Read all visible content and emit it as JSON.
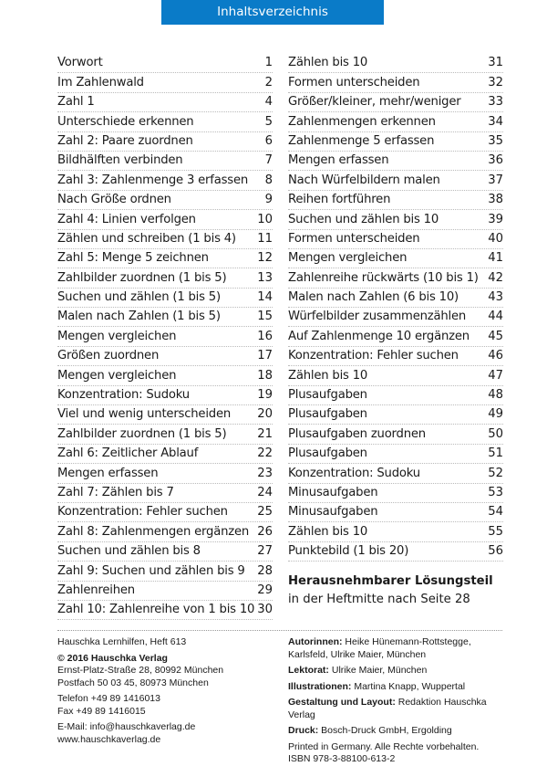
{
  "header": {
    "title": "Inhaltsverzeichnis",
    "color": "#0a7bc8"
  },
  "toc_left": [
    {
      "title": "Vorwort",
      "page": "1"
    },
    {
      "title": "Im Zahlenwald",
      "page": "2"
    },
    {
      "title": "Zahl 1",
      "page": "4"
    },
    {
      "title": "Unterschiede erkennen",
      "page": "5"
    },
    {
      "title": "Zahl 2: Paare zuordnen",
      "page": "6"
    },
    {
      "title": "Bildhälften verbinden",
      "page": "7"
    },
    {
      "title": "Zahl 3: Zahlenmenge 3 erfassen",
      "page": "8"
    },
    {
      "title": "Nach Größe ordnen",
      "page": "9"
    },
    {
      "title": "Zahl 4: Linien verfolgen",
      "page": "10"
    },
    {
      "title": "Zählen und schreiben (1 bis 4)",
      "page": "11"
    },
    {
      "title": "Zahl 5: Menge 5 zeichnen",
      "page": "12"
    },
    {
      "title": "Zahlbilder zuordnen (1 bis 5)",
      "page": "13"
    },
    {
      "title": "Suchen und zählen (1 bis 5)",
      "page": "14"
    },
    {
      "title": "Malen nach Zahlen (1 bis 5)",
      "page": "15"
    },
    {
      "title": "Mengen vergleichen",
      "page": "16"
    },
    {
      "title": "Größen zuordnen",
      "page": "17"
    },
    {
      "title": "Mengen vergleichen",
      "page": "18"
    },
    {
      "title": "Konzentration: Sudoku",
      "page": "19"
    },
    {
      "title": "Viel und wenig unterscheiden",
      "page": "20"
    },
    {
      "title": "Zahlbilder zuordnen (1 bis 5)",
      "page": "21"
    },
    {
      "title": "Zahl 6: Zeitlicher Ablauf",
      "page": "22"
    },
    {
      "title": "Mengen erfassen",
      "page": "23"
    },
    {
      "title": "Zahl 7: Zählen bis 7",
      "page": "24"
    },
    {
      "title": "Konzentration: Fehler suchen",
      "page": "25"
    },
    {
      "title": "Zahl 8: Zahlenmengen ergänzen",
      "page": "26"
    },
    {
      "title": "Suchen und zählen bis 8",
      "page": "27"
    },
    {
      "title": "Zahl 9: Suchen und zählen bis 9",
      "page": "28"
    },
    {
      "title": "Zahlenreihen",
      "page": "29"
    },
    {
      "title": "Zahl 10: Zahlenreihe von 1 bis 10",
      "page": "30"
    }
  ],
  "toc_right": [
    {
      "title": "Zählen bis 10",
      "page": "31"
    },
    {
      "title": "Formen unterscheiden",
      "page": "32"
    },
    {
      "title": "Größer/kleiner, mehr/weniger",
      "page": "33"
    },
    {
      "title": "Zahlenmengen erkennen",
      "page": "34"
    },
    {
      "title": "Zahlenmenge 5 erfassen",
      "page": "35"
    },
    {
      "title": "Mengen erfassen",
      "page": "36"
    },
    {
      "title": "Nach Würfelbildern malen",
      "page": "37"
    },
    {
      "title": "Reihen fortführen",
      "page": "38"
    },
    {
      "title": "Suchen und zählen bis 10",
      "page": "39"
    },
    {
      "title": "Formen unterscheiden",
      "page": "40"
    },
    {
      "title": "Mengen vergleichen",
      "page": "41"
    },
    {
      "title": "Zahlenreihe rückwärts (10 bis 1)",
      "page": "42"
    },
    {
      "title": "Malen nach Zahlen (6 bis 10)",
      "page": "43"
    },
    {
      "title": "Würfelbilder zusammenzählen",
      "page": "44"
    },
    {
      "title": "Auf Zahlenmenge 10 ergänzen",
      "page": "45"
    },
    {
      "title": "Konzentration: Fehler suchen",
      "page": "46"
    },
    {
      "title": "Zählen bis 10",
      "page": "47"
    },
    {
      "title": "Plusaufgaben",
      "page": "48"
    },
    {
      "title": "Plusaufgaben",
      "page": "49"
    },
    {
      "title": "Plusaufgaben zuordnen",
      "page": "50"
    },
    {
      "title": "Plusaufgaben",
      "page": "51"
    },
    {
      "title": "Konzentration: Sudoku",
      "page": "52"
    },
    {
      "title": "Minusaufgaben",
      "page": "53"
    },
    {
      "title": "Minusaufgaben",
      "page": "54"
    },
    {
      "title": "Zählen bis 10",
      "page": "55"
    },
    {
      "title": "Punktebild (1 bis 20)",
      "page": "56"
    }
  ],
  "solutions": {
    "title": "Herausnehmbarer Lösungsteil",
    "note": "in der Heftmitte nach Seite 28"
  },
  "imprint_left": {
    "series": "Hauschka Lernhilfen, Heft 613",
    "copyright": "© 2016 Hauschka Verlag",
    "address1": "Ernst-Platz-Straße 28, 80992 München",
    "address2": "Postfach 50 03 45, 80973 München",
    "phone": "Telefon +49 89 1416013",
    "fax": "Fax +49 89 1416015",
    "email": "E-Mail: info@hauschkaverlag.de",
    "web": "www.hauschkaverlag.de"
  },
  "imprint_right": [
    {
      "label": "Autorinnen:",
      "value": " Heike Hünemann-Rottstegge, Karlsfeld, Ulrike Maier, München"
    },
    {
      "label": "Lektorat:",
      "value": " Ulrike Maier, München"
    },
    {
      "label": "Illustrationen:",
      "value": " Martina Knapp, Wuppertal"
    },
    {
      "label": "Gestaltung und Layout:",
      "value": " Redaktion Hauschka Verlag"
    },
    {
      "label": "Druck:",
      "value": " Bosch-Druck GmbH, Ergolding"
    }
  ],
  "printed": "Printed in Germany. Alle Rechte vorbehalten.",
  "isbn": "ISBN 978-3-88100-613-2"
}
